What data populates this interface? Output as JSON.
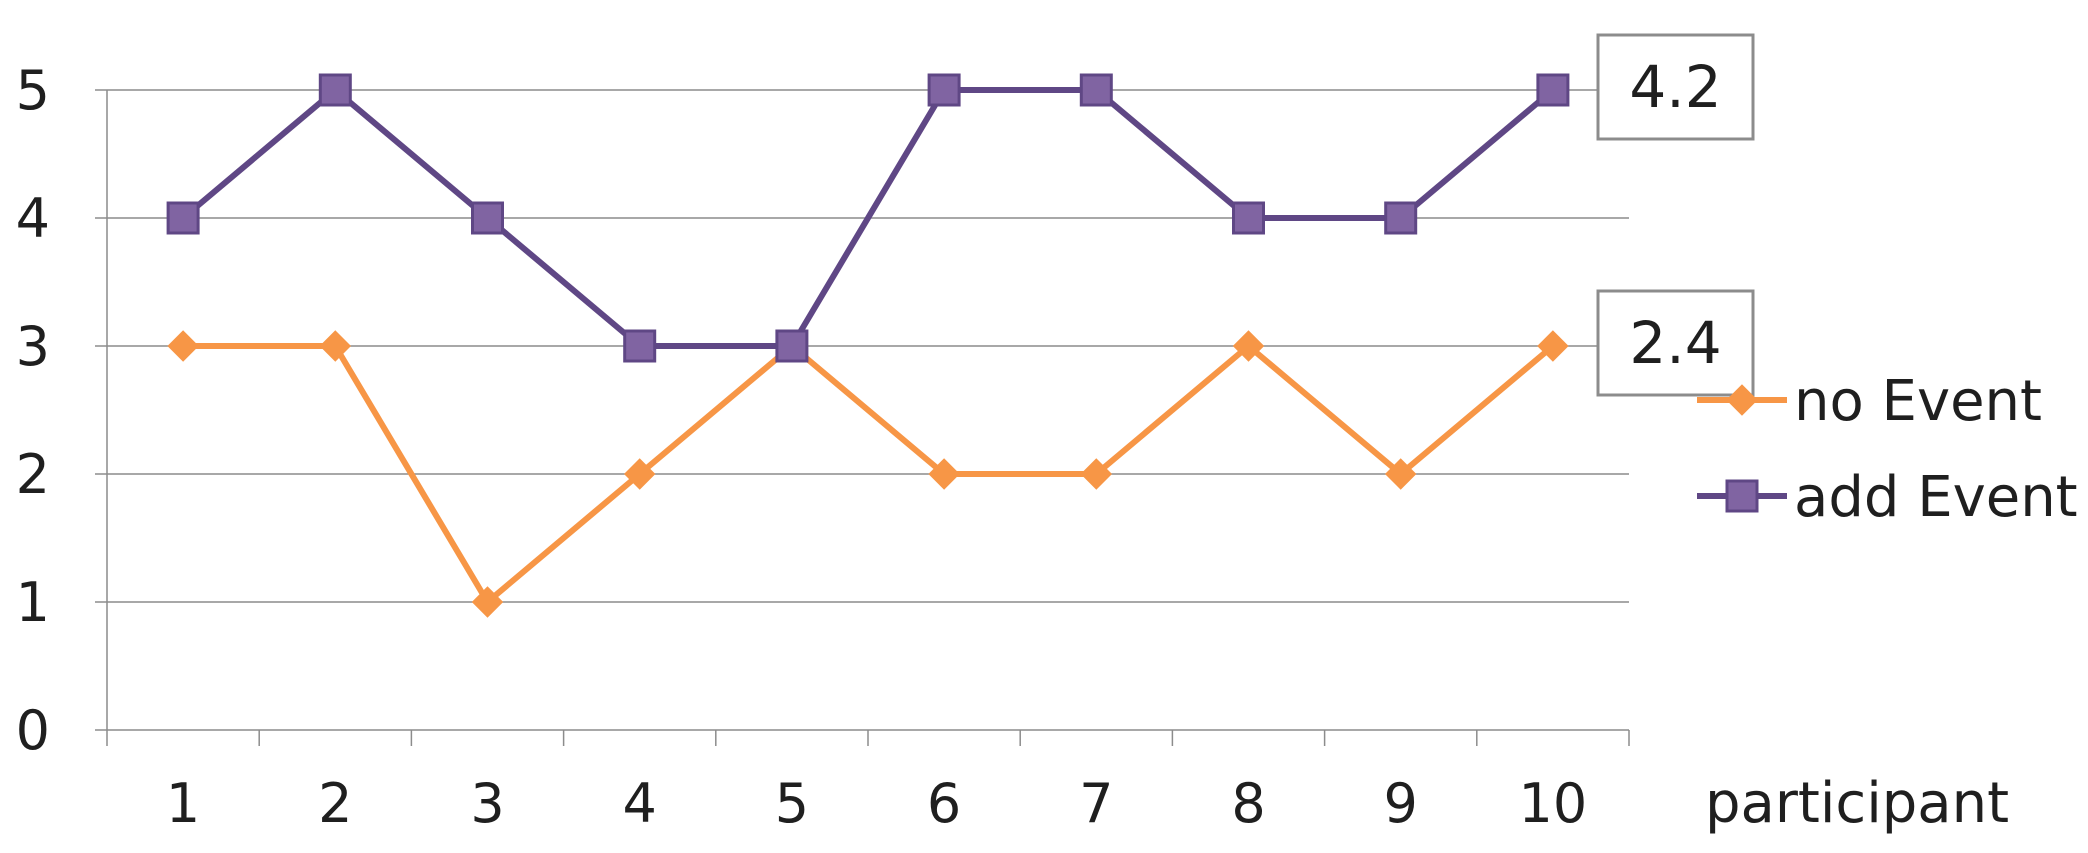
{
  "chart_data": {
    "type": "line",
    "categories": [
      "1",
      "2",
      "3",
      "4",
      "5",
      "6",
      "7",
      "8",
      "9",
      "10"
    ],
    "xlabel": "participant",
    "ylabel": "",
    "ylim": [
      0,
      5
    ],
    "yticks": [
      "0",
      "1",
      "2",
      "3",
      "4",
      "5"
    ],
    "grid": true,
    "legend_position": "right",
    "series": [
      {
        "name": "no Event",
        "values": [
          3,
          3,
          1,
          2,
          3,
          2,
          2,
          3,
          2,
          3
        ],
        "color": "#F79646",
        "marker": "diamond"
      },
      {
        "name": "add Event",
        "values": [
          4,
          5,
          4,
          3,
          3,
          5,
          5,
          4,
          4,
          5
        ],
        "color": "#5F4785",
        "marker_fill": "#8064A2",
        "marker": "square"
      }
    ],
    "annotations": [
      {
        "text": "4.2",
        "series": "add Event",
        "anchor_value": 5
      },
      {
        "text": "2.4",
        "series": "no Event",
        "anchor_value": 3
      }
    ]
  }
}
